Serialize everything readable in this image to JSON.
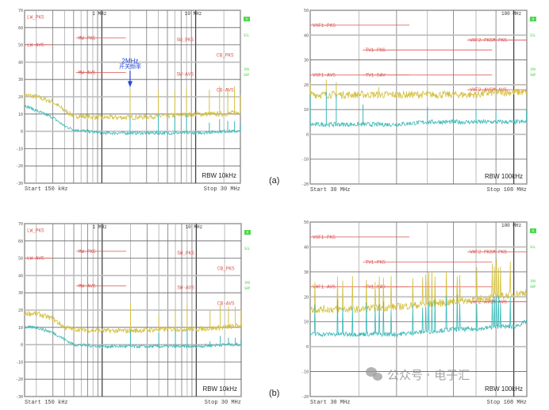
{
  "figure": {
    "panel_labels": [
      "(a)",
      "(b)"
    ],
    "watermark": "公众号 · 电子汇",
    "annotation": {
      "title": "2MHz",
      "subtitle": "开关频率"
    }
  },
  "colors": {
    "peak": "#d4c040",
    "average": "#3bb8b8",
    "limit": "#d9534f",
    "side_label": "#4cd94c",
    "annotation": "#2244dd"
  },
  "chart_data": [
    {
      "id": "a-conducted",
      "type": "line",
      "xscale": "log",
      "xlim_mhz": [
        0.15,
        30
      ],
      "ylim": [
        -30,
        70
      ],
      "yticks": [
        70,
        60,
        50,
        40,
        30,
        20,
        10,
        0,
        -10,
        -20,
        -30
      ],
      "ytick_labels": [
        "70",
        "60",
        "50",
        "40",
        "30",
        "20",
        "10",
        "0",
        "-10",
        "-20",
        "-30"
      ],
      "freq_markers": [
        {
          "f": 1,
          "label": "1 MHz"
        },
        {
          "f": 10,
          "label": "10 MHz"
        }
      ],
      "start_label": "Start 150 kHz",
      "stop_label": "Stop 30 MHz",
      "rbw_label": "RBW 10kHz",
      "side_labels": [
        "A",
        "SGL",
        "1MA",
        "SWP"
      ],
      "limits": [
        {
          "label": "LW_PKS",
          "f1": 0.15,
          "f2": 0.15,
          "y": 66
        },
        {
          "label": "LW-AVS",
          "f1": 0.15,
          "f2": 0.3,
          "y": 50
        },
        {
          "label": "MW-PKS",
          "f1": 0.53,
          "f2": 1.8,
          "y": 54
        },
        {
          "label": "MW-AVS",
          "f1": 0.53,
          "f2": 1.8,
          "y": 34
        },
        {
          "label": "SW_PKS",
          "f1": 5.9,
          "f2": 5.9,
          "y": 53
        },
        {
          "label": "SW-AVS",
          "f1": 5.9,
          "f2": 5.9,
          "y": 33
        },
        {
          "label": "CB_PKS",
          "f1": 26,
          "f2": 26,
          "y": 44
        },
        {
          "label": "CB-AVS",
          "f1": 26,
          "f2": 26,
          "y": 24
        }
      ],
      "series": [
        {
          "name": "Peak",
          "x": [
            0.15,
            0.2,
            0.3,
            0.4,
            0.5,
            1,
            2,
            5,
            10,
            20,
            30
          ],
          "y": [
            21,
            20,
            17,
            12,
            9,
            8,
            8,
            9,
            10,
            10,
            11
          ],
          "spikes": [
            {
              "f": 2,
              "y": 24
            },
            {
              "f": 4,
              "y": 24
            },
            {
              "f": 6,
              "y": 23
            },
            {
              "f": 8,
              "y": 25
            },
            {
              "f": 14,
              "y": 24
            },
            {
              "f": 18,
              "y": 26
            },
            {
              "f": 22,
              "y": 25
            },
            {
              "f": 26,
              "y": 26
            },
            {
              "f": 30,
              "y": 21
            }
          ]
        },
        {
          "name": "Average",
          "x": [
            0.15,
            0.2,
            0.3,
            0.4,
            0.5,
            1,
            2,
            5,
            10,
            20,
            30
          ],
          "y": [
            15,
            12,
            8,
            3,
            1,
            -1,
            -1,
            -1,
            -1,
            0,
            0
          ],
          "spikes": [
            {
              "f": 2,
              "y": 8
            },
            {
              "f": 4,
              "y": 10
            },
            {
              "f": 6,
              "y": 9
            },
            {
              "f": 8,
              "y": 10
            },
            {
              "f": 14,
              "y": 5
            },
            {
              "f": 18,
              "y": 7
            },
            {
              "f": 22,
              "y": 6
            },
            {
              "f": 26,
              "y": 6
            },
            {
              "f": 30,
              "y": 4
            }
          ]
        }
      ]
    },
    {
      "id": "a-radiated",
      "type": "line",
      "xscale": "log",
      "xlim_mhz": [
        30,
        108
      ],
      "ylim": [
        -20,
        50
      ],
      "yticks": [
        50,
        40,
        30,
        20,
        10,
        0,
        -10,
        -20
      ],
      "ytick_labels": [
        "50",
        "40",
        "30",
        "20",
        "10",
        "0",
        "-10",
        "-20"
      ],
      "freq_markers": [
        {
          "f": 100,
          "label": "100 MHz"
        }
      ],
      "start_label": "Start 30 MHz",
      "stop_label": "Stop 108 MHz",
      "rbw_label": "RBW 100kHz",
      "side_labels": [
        "A",
        "SGL",
        "1MA",
        "SWP"
      ],
      "limits": [
        {
          "label": "VHF1-PKS",
          "f1": 30,
          "f2": 54,
          "y": 44
        },
        {
          "label": "TV1-PKS",
          "f1": 41,
          "f2": 88,
          "y": 34
        },
        {
          "label": "VHF1-AVS",
          "f1": 30,
          "f2": 54,
          "y": 24
        },
        {
          "label": "TV1-SAV",
          "f1": 41,
          "f2": 88,
          "y": 24
        },
        {
          "label": "VHF2-PKSM-PKS",
          "f1": 76,
          "f2": 108,
          "y": 38
        },
        {
          "label": "VHF2-AVSM-AVS",
          "f1": 76,
          "f2": 108,
          "y": 18
        }
      ],
      "series": [
        {
          "name": "Peak",
          "x": [
            30,
            40,
            50,
            60,
            70,
            80,
            90,
            100,
            108
          ],
          "y": [
            16,
            16,
            16,
            16,
            16,
            16,
            17,
            17,
            17
          ],
          "spikes": [
            {
              "f": 30,
              "y": 21
            },
            {
              "f": 33,
              "y": 22
            },
            {
              "f": 35,
              "y": 21
            },
            {
              "f": 45,
              "y": 19
            },
            {
              "f": 60,
              "y": 19
            }
          ]
        },
        {
          "name": "Average",
          "x": [
            30,
            40,
            50,
            60,
            70,
            80,
            90,
            100,
            108
          ],
          "y": [
            4,
            4,
            4,
            5,
            5,
            5,
            5,
            5,
            5
          ],
          "spikes": [
            {
              "f": 30,
              "y": 16
            },
            {
              "f": 33,
              "y": 17
            },
            {
              "f": 35,
              "y": 16
            },
            {
              "f": 41,
              "y": 12
            },
            {
              "f": 60,
              "y": 11
            },
            {
              "f": 70,
              "y": 10
            },
            {
              "f": 80,
              "y": 10
            },
            {
              "f": 90,
              "y": 9
            },
            {
              "f": 108,
              "y": 10
            }
          ]
        }
      ]
    },
    {
      "id": "b-conducted",
      "type": "line",
      "xscale": "log",
      "xlim_mhz": [
        0.15,
        30
      ],
      "ylim": [
        -30,
        70
      ],
      "yticks": [
        70,
        60,
        50,
        40,
        30,
        20,
        10,
        0,
        -10,
        -20,
        -30
      ],
      "ytick_labels": [
        "70",
        "60",
        "50",
        "40",
        "30",
        "20",
        "10",
        "0",
        "-10",
        "-20",
        "-30"
      ],
      "freq_markers": [
        {
          "f": 1,
          "label": "1 MHz"
        },
        {
          "f": 10,
          "label": "10 MHz"
        }
      ],
      "start_label": "Start 150 kHz",
      "stop_label": "Stop 30 MHz",
      "rbw_label": "RBW 10kHz",
      "side_labels": [
        "A",
        "SGL",
        "1MA",
        "SWP"
      ],
      "limits": [
        {
          "label": "LW_PKS",
          "f1": 0.15,
          "f2": 0.15,
          "y": 66
        },
        {
          "label": "LW-AVS",
          "f1": 0.15,
          "f2": 0.3,
          "y": 50
        },
        {
          "label": "MW-PKS",
          "f1": 0.53,
          "f2": 1.8,
          "y": 54
        },
        {
          "label": "MW-AVS",
          "f1": 0.53,
          "f2": 1.8,
          "y": 34
        },
        {
          "label": "SW_PKS",
          "f1": 5.9,
          "f2": 5.9,
          "y": 53
        },
        {
          "label": "SW-AVS",
          "f1": 5.9,
          "f2": 5.9,
          "y": 33
        },
        {
          "label": "CB_PKS",
          "f1": 26,
          "f2": 26,
          "y": 44
        },
        {
          "label": "CB-AVS",
          "f1": 26,
          "f2": 26,
          "y": 24
        }
      ],
      "series": [
        {
          "name": "Peak",
          "x": [
            0.15,
            0.2,
            0.3,
            0.4,
            0.5,
            1,
            2,
            5,
            10,
            20,
            30
          ],
          "y": [
            18,
            18,
            15,
            10,
            9,
            8,
            8,
            9,
            9,
            10,
            11
          ],
          "spikes": [
            {
              "f": 2,
              "y": 24
            },
            {
              "f": 4,
              "y": 17
            },
            {
              "f": 6,
              "y": 21
            },
            {
              "f": 8,
              "y": 23
            },
            {
              "f": 14,
              "y": 20
            },
            {
              "f": 18,
              "y": 23
            },
            {
              "f": 22,
              "y": 22
            },
            {
              "f": 26,
              "y": 22
            },
            {
              "f": 30,
              "y": 20
            }
          ]
        },
        {
          "name": "Average",
          "x": [
            0.15,
            0.2,
            0.3,
            0.4,
            0.5,
            1,
            2,
            5,
            10,
            20,
            30
          ],
          "y": [
            10,
            10,
            7,
            3,
            0,
            -1,
            -1,
            -1,
            -1,
            0,
            0
          ],
          "spikes": [
            {
              "f": 2,
              "y": 8
            },
            {
              "f": 4,
              "y": 7
            },
            {
              "f": 6,
              "y": 9
            },
            {
              "f": 8,
              "y": 9
            },
            {
              "f": 14,
              "y": 2
            },
            {
              "f": 18,
              "y": 5
            },
            {
              "f": 22,
              "y": 4
            },
            {
              "f": 26,
              "y": 4
            },
            {
              "f": 30,
              "y": 3
            }
          ]
        }
      ]
    },
    {
      "id": "b-radiated",
      "type": "line",
      "xscale": "log",
      "xlim_mhz": [
        30,
        108
      ],
      "ylim": [
        -20,
        50
      ],
      "yticks": [
        50,
        40,
        30,
        20,
        10,
        0,
        -10,
        -20
      ],
      "ytick_labels": [
        "50",
        "40",
        "30",
        "20",
        "10",
        "0",
        "-10",
        "-20"
      ],
      "freq_markers": [
        {
          "f": 100,
          "label": "100 MHz"
        }
      ],
      "start_label": "Start 30 MHz",
      "stop_label": "Stop 108 MHz",
      "rbw_label": "RBW 100kHz",
      "side_labels": [
        "A",
        "SGL",
        "1MA",
        "SWP"
      ],
      "limits": [
        {
          "label": "VHF1-PKS",
          "f1": 30,
          "f2": 54,
          "y": 44
        },
        {
          "label": "TV1-PKS",
          "f1": 41,
          "f2": 88,
          "y": 34
        },
        {
          "label": "VHF1-AVS",
          "f1": 30,
          "f2": 54,
          "y": 24
        },
        {
          "label": "TV1-SAV",
          "f1": 41,
          "f2": 88,
          "y": 24
        },
        {
          "label": "VHF2-PKSM-PKS",
          "f1": 76,
          "f2": 108,
          "y": 38
        },
        {
          "label": "VHF2-AVSM-AVS",
          "f1": 76,
          "f2": 108,
          "y": 18
        }
      ],
      "series": [
        {
          "name": "Peak",
          "x": [
            30,
            40,
            50,
            60,
            70,
            80,
            90,
            100,
            108
          ],
          "y": [
            15,
            15,
            16,
            17,
            18,
            19,
            20,
            21,
            22
          ],
          "spike_period_mhz": 1.1,
          "spike_height": [
            10,
            14
          ]
        },
        {
          "name": "Average",
          "x": [
            30,
            40,
            50,
            60,
            70,
            80,
            90,
            100,
            108
          ],
          "y": [
            5,
            5,
            5,
            6,
            7,
            7,
            8,
            8,
            10
          ],
          "spike_period_mhz": 1.1,
          "spike_height": [
            9,
            14
          ]
        }
      ]
    }
  ]
}
